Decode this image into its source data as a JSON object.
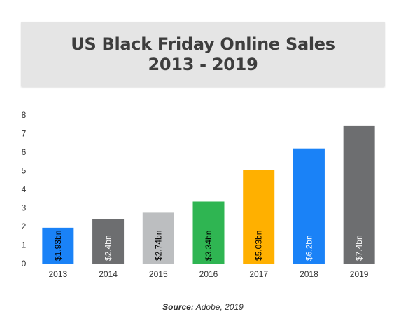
{
  "title": {
    "line1": "US Black Friday Online Sales",
    "line2": "2013 - 2019"
  },
  "source": {
    "label": "Source:",
    "text": "Adobe, 2019"
  },
  "chart_data": {
    "type": "bar",
    "categories": [
      "2013",
      "2014",
      "2015",
      "2016",
      "2017",
      "2018",
      "2019"
    ],
    "values": [
      1.93,
      2.4,
      2.74,
      3.34,
      5.03,
      6.2,
      7.4
    ],
    "data_labels": [
      "$1.93bn",
      "$2.4bn",
      "$2.74bn",
      "$3.34bn",
      "$5.03bn",
      "$6.2bn",
      "$7.4bn"
    ],
    "colors": [
      "#1a82f7",
      "#6d6e70",
      "#bcbec0",
      "#2fb552",
      "#ffb000",
      "#1a82f7",
      "#6d6e70"
    ],
    "label_colors": [
      "#000000",
      "#ffffff",
      "#000000",
      "#000000",
      "#000000",
      "#ffffff",
      "#ffffff"
    ],
    "yticks": [
      "0",
      "1",
      "2",
      "3",
      "4",
      "5",
      "6",
      "7",
      "8"
    ],
    "ylim": [
      0,
      8
    ],
    "xlabel": "",
    "ylabel": "",
    "grid": false,
    "legend": "none"
  }
}
